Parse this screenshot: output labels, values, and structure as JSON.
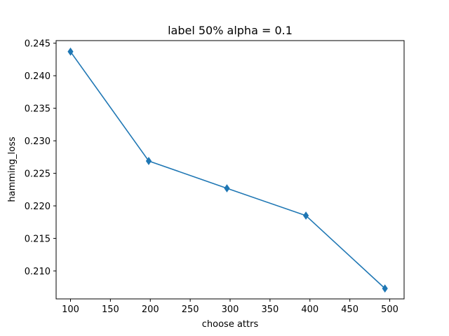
{
  "chart_data": {
    "type": "line",
    "title": "label 50% alpha = 0.1",
    "xlabel": "choose attrs",
    "ylabel": "hamming_loss",
    "xlim": [
      82,
      518
    ],
    "ylim": [
      0.2057,
      0.2454
    ],
    "xticks": [
      100,
      150,
      200,
      250,
      300,
      350,
      400,
      450,
      500
    ],
    "yticks": [
      0.21,
      0.215,
      0.22,
      0.225,
      0.23,
      0.235,
      0.24,
      0.245
    ],
    "xtick_labels": [
      "100",
      "150",
      "200",
      "250",
      "300",
      "350",
      "400",
      "450",
      "500"
    ],
    "ytick_labels": [
      "0.210",
      "0.215",
      "0.220",
      "0.225",
      "0.230",
      "0.235",
      "0.240",
      "0.245"
    ],
    "grid": false,
    "legend": "none",
    "series": [
      {
        "color": "#1f77b4",
        "marker": "thin-diamond",
        "x": [
          100,
          198,
          296,
          395,
          494
        ],
        "y": [
          0.2437,
          0.2269,
          0.2227,
          0.2185,
          0.2073
        ]
      }
    ]
  }
}
